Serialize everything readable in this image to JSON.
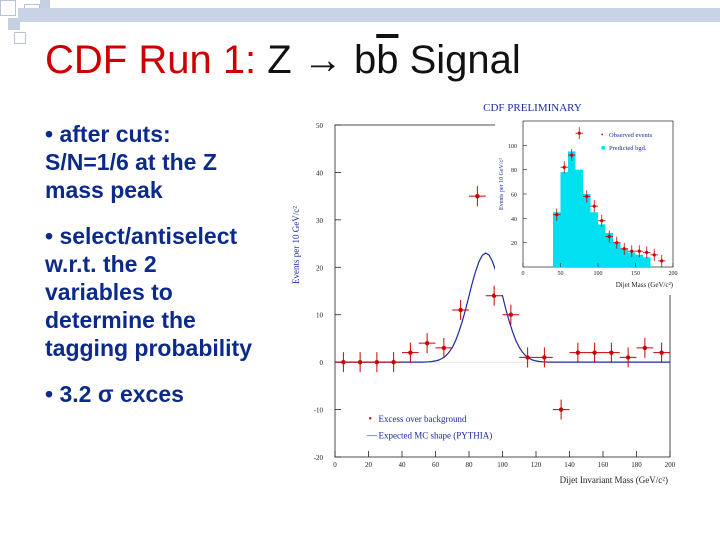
{
  "slide": {
    "title_main": "CDF Run 1: ",
    "title_z": "Z",
    "title_arrow": "→",
    "title_b": "b",
    "title_bbar": "b",
    "title_signal": "Signal"
  },
  "bullets": [
    {
      "marker": "•",
      "text": "after cuts:\nS/N=1/6 at the Z\nmass peak"
    },
    {
      "marker": "•",
      "text": "select/antiselect\nw.r.t. the 2\nvariables to\ndetermine the\ntagging probability"
    },
    {
      "marker": "•",
      "text": "3.2 σ exces"
    }
  ],
  "chart_data": [
    {
      "type": "scatter",
      "title": "CDF PRELIMINARY",
      "xlabel": "Dijet Invariant Mass (GeV/c²)",
      "ylabel": "Events per 10 GeV/c²",
      "xlim": [
        0,
        200
      ],
      "ylim": [
        -20,
        50
      ],
      "xticks": [
        0,
        20,
        40,
        60,
        80,
        100,
        120,
        140,
        160,
        180,
        200
      ],
      "yticks": [
        -20,
        -10,
        0,
        10,
        20,
        30,
        40,
        50
      ],
      "points": [
        {
          "x": 5,
          "y": 0
        },
        {
          "x": 15,
          "y": 0
        },
        {
          "x": 25,
          "y": 0
        },
        {
          "x": 35,
          "y": 0
        },
        {
          "x": 45,
          "y": 2
        },
        {
          "x": 55,
          "y": 4
        },
        {
          "x": 65,
          "y": 3
        },
        {
          "x": 75,
          "y": 11
        },
        {
          "x": 85,
          "y": 35
        },
        {
          "x": 95,
          "y": 14
        },
        {
          "x": 105,
          "y": 10
        },
        {
          "x": 115,
          "y": 1
        },
        {
          "x": 125,
          "y": 1
        },
        {
          "x": 135,
          "y": -10
        },
        {
          "x": 145,
          "y": 2
        },
        {
          "x": 155,
          "y": 2
        },
        {
          "x": 165,
          "y": 2
        },
        {
          "x": 175,
          "y": 1
        },
        {
          "x": 185,
          "y": 3
        },
        {
          "x": 195,
          "y": 2
        }
      ],
      "fit_curve": {
        "mean": 90,
        "sigma": 10,
        "amplitude": 23
      },
      "legend": [
        {
          "marker": "•",
          "label": "Excess over background",
          "color": "#cc0000"
        },
        {
          "marker": "—",
          "label": "Expected MC shape (PYTHIA)",
          "color": "#1a2aa0"
        }
      ],
      "colors": {
        "points": "#cc0000",
        "curve": "#1a2aa0",
        "axis": "#222222"
      }
    },
    {
      "type": "bar",
      "title": "",
      "xlabel": "Dijet Mass (GeV/c²)",
      "ylabel": "Events per 10 GeV/c²",
      "xlim": [
        0,
        200
      ],
      "ylim": [
        0,
        120
      ],
      "xticks": [
        0,
        50,
        100,
        150,
        200
      ],
      "yticks": [
        20,
        40,
        60,
        80,
        100
      ],
      "bin_edges": [
        40,
        50,
        60,
        70,
        80,
        90,
        100,
        110,
        120,
        130,
        140,
        150,
        160,
        170
      ],
      "predicted": [
        45,
        78,
        95,
        80,
        60,
        45,
        35,
        28,
        20,
        15,
        12,
        10,
        8
      ],
      "observed": [
        {
          "x": 45,
          "y": 43
        },
        {
          "x": 55,
          "y": 82
        },
        {
          "x": 65,
          "y": 92
        },
        {
          "x": 75,
          "y": 110
        },
        {
          "x": 85,
          "y": 58
        },
        {
          "x": 95,
          "y": 50
        },
        {
          "x": 105,
          "y": 38
        },
        {
          "x": 115,
          "y": 25
        },
        {
          "x": 125,
          "y": 20
        },
        {
          "x": 135,
          "y": 15
        },
        {
          "x": 145,
          "y": 13
        },
        {
          "x": 155,
          "y": 13
        },
        {
          "x": 165,
          "y": 12
        },
        {
          "x": 175,
          "y": 10
        },
        {
          "x": 185,
          "y": 5
        }
      ],
      "legend": [
        {
          "marker": "•",
          "label": "Observed events",
          "color": "#cc0000"
        },
        {
          "marker": "■",
          "label": "Predicted bgd.",
          "color": "#00e0f0"
        }
      ]
    }
  ]
}
